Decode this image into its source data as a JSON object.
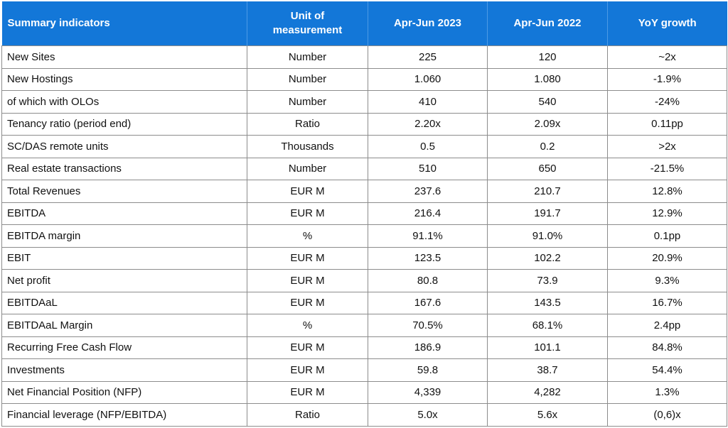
{
  "table": {
    "headers": [
      "Summary indicators",
      "Unit of measurement",
      "Apr-Jun 2023",
      "Apr-Jun 2022",
      "YoY growth"
    ],
    "header_unit_line1": "Unit of",
    "header_unit_line2": "measurement",
    "rows": [
      {
        "indicator": "New Sites",
        "unit": "Number",
        "y2023": "225",
        "y2022": "120",
        "yoy": "~2x"
      },
      {
        "indicator": "New Hostings",
        "unit": "Number",
        "y2023": "1.060",
        "y2022": "1.080",
        "yoy": "-1.9%"
      },
      {
        "indicator": "of which with OLOs",
        "unit": "Number",
        "y2023": "410",
        "y2022": "540",
        "yoy": "-24%"
      },
      {
        "indicator": "Tenancy ratio (period end)",
        "unit": "Ratio",
        "y2023": "2.20x",
        "y2022": "2.09x",
        "yoy": "0.11pp"
      },
      {
        "indicator": "SC/DAS remote units",
        "unit": "Thousands",
        "y2023": "0.5",
        "y2022": "0.2",
        "yoy": ">2x"
      },
      {
        "indicator": "Real estate transactions",
        "unit": "Number",
        "y2023": "510",
        "y2022": "650",
        "yoy": "-21.5%"
      },
      {
        "indicator": "Total Revenues",
        "unit": "EUR M",
        "y2023": "237.6",
        "y2022": "210.7",
        "yoy": "12.8%"
      },
      {
        "indicator": "EBITDA",
        "unit": "EUR M",
        "y2023": "216.4",
        "y2022": "191.7",
        "yoy": "12.9%"
      },
      {
        "indicator": "EBITDA margin",
        "unit": "%",
        "y2023": "91.1%",
        "y2022": "91.0%",
        "yoy": "0.1pp"
      },
      {
        "indicator": "EBIT",
        "unit": "EUR M",
        "y2023": "123.5",
        "y2022": "102.2",
        "yoy": "20.9%"
      },
      {
        "indicator": "Net profit",
        "unit": "EUR M",
        "y2023": "80.8",
        "y2022": "73.9",
        "yoy": "9.3%"
      },
      {
        "indicator": "EBITDAaL",
        "unit": "EUR M",
        "y2023": "167.6",
        "y2022": "143.5",
        "yoy": "16.7%"
      },
      {
        "indicator": "EBITDAaL Margin",
        "unit": "%",
        "y2023": "70.5%",
        "y2022": "68.1%",
        "yoy": "2.4pp"
      },
      {
        "indicator": "Recurring Free Cash Flow",
        "unit": "EUR M",
        "y2023": "186.9",
        "y2022": "101.1",
        "yoy": "84.8%"
      },
      {
        "indicator": "Investments",
        "unit": "EUR M",
        "y2023": "59.8",
        "y2022": "38.7",
        "yoy": "54.4%"
      },
      {
        "indicator": "Net Financial Position (NFP)",
        "unit": "EUR M",
        "y2023": "4,339",
        "y2022": "4,282",
        "yoy": "1.3%"
      },
      {
        "indicator": "Financial leverage (NFP/EBITDA)",
        "unit": "Ratio",
        "y2023": "5.0x",
        "y2022": "5.6x",
        "yoy": "(0,6)x"
      }
    ]
  },
  "colors": {
    "header_bg": "#1377d8",
    "header_text": "#ffffff",
    "grid": "#8c8c8c"
  }
}
